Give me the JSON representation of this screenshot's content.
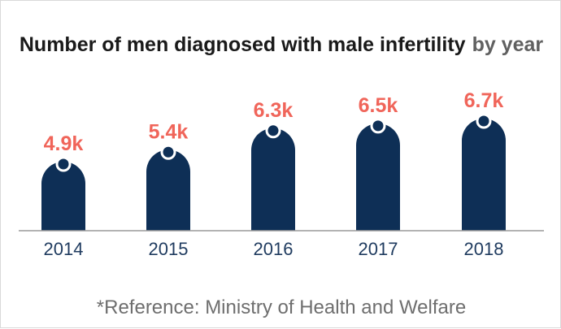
{
  "chart_data": {
    "type": "bar",
    "title": "Number of men diagnosed with male infertility",
    "subtitle": "by year",
    "categories": [
      "2014",
      "2015",
      "2016",
      "2017",
      "2018"
    ],
    "values": [
      4.9,
      5.4,
      6.3,
      6.5,
      6.7
    ],
    "value_labels": [
      "4.9k",
      "5.4k",
      "6.3k",
      "6.5k",
      "6.7k"
    ],
    "unit": "k",
    "ylim": [
      0,
      7.5
    ],
    "grid": false,
    "bar_color": "#0e2f56",
    "label_color": "#f0655a",
    "axis_color": "#9a9a9a"
  },
  "footer": {
    "reference": "*Reference: Ministry of Health and Welfare"
  }
}
